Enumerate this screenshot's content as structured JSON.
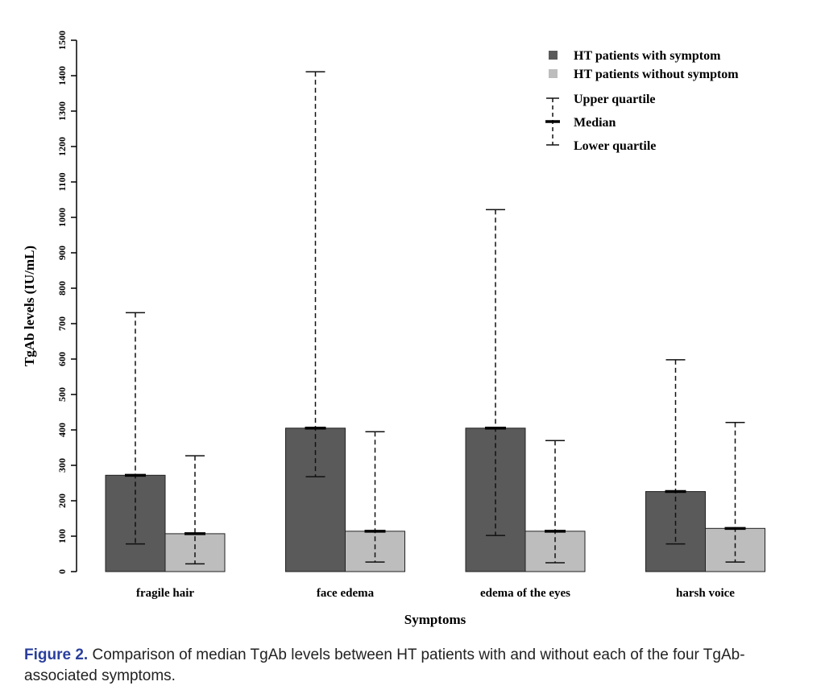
{
  "chart_data": {
    "type": "bar",
    "xlabel": "Symptoms",
    "ylabel": "TgAb levels (IU/mL)",
    "ylim": [
      0,
      1500
    ],
    "yticks": [
      0,
      100,
      200,
      300,
      400,
      500,
      600,
      700,
      800,
      900,
      1000,
      1100,
      1200,
      1300,
      1400,
      1500
    ],
    "categories": [
      "fragile hair",
      "face edema",
      "edema of the eyes",
      "harsh voice"
    ],
    "series": [
      {
        "name": "HT patients with symptom",
        "color": "#5a5a5a",
        "values": [
          272,
          405,
          405,
          226
        ],
        "upper_quartile": [
          731,
          1411,
          1022,
          598
        ],
        "lower_quartile": [
          78,
          268,
          102,
          78
        ]
      },
      {
        "name": "HT patients without symptom",
        "color": "#bdbdbd",
        "values": [
          107,
          114,
          114,
          122
        ],
        "upper_quartile": [
          327,
          395,
          370,
          421
        ],
        "lower_quartile": [
          22,
          27,
          25,
          27
        ]
      }
    ],
    "legend": {
      "position": "top-right",
      "upper_label": "Upper quartile",
      "median_label": "Median",
      "lower_label": "Lower quartile"
    }
  },
  "caption": {
    "label": "Figure 2.",
    "text": " Comparison of median TgAb levels between HT patients with and without each of the four TgAb-associated symptoms."
  }
}
